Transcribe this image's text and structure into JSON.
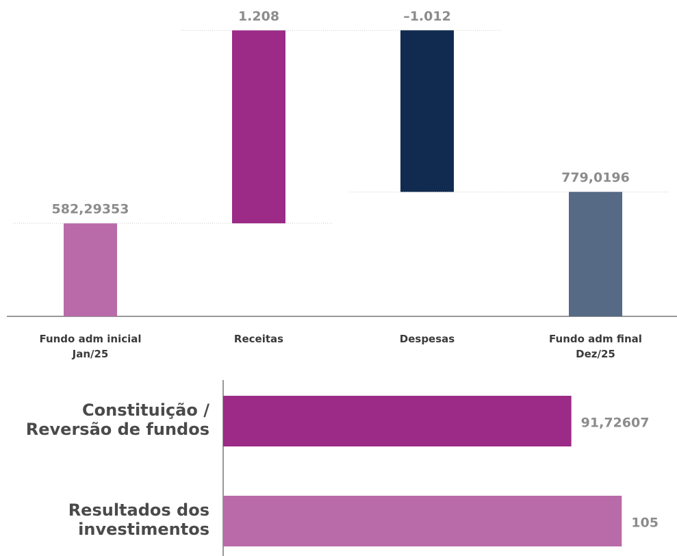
{
  "chart_data": [
    {
      "type": "waterfall",
      "categories": [
        "Fundo adm inicial\nJan/25",
        "Receitas",
        "Despesas",
        "Fundo adm final\nDez/25"
      ],
      "values": [
        582.29353,
        1208,
        -1012,
        779.0196
      ],
      "value_labels": [
        "582,29353",
        "1.208",
        "–1.012",
        "779,0196"
      ],
      "colors": [
        "#b96aa8",
        "#9b2b86",
        "#112b50",
        "#566985"
      ],
      "ylim": [
        0,
        1800
      ]
    },
    {
      "type": "hbar",
      "categories": [
        "Constituição /\nReversão de fundos",
        "Resultados dos\ninvestimentos"
      ],
      "values": [
        91.72607,
        105
      ],
      "value_labels": [
        "91,72607",
        "105"
      ],
      "colors": [
        "#9b2b86",
        "#b96aa8"
      ],
      "xlim": [
        0,
        110
      ]
    }
  ]
}
